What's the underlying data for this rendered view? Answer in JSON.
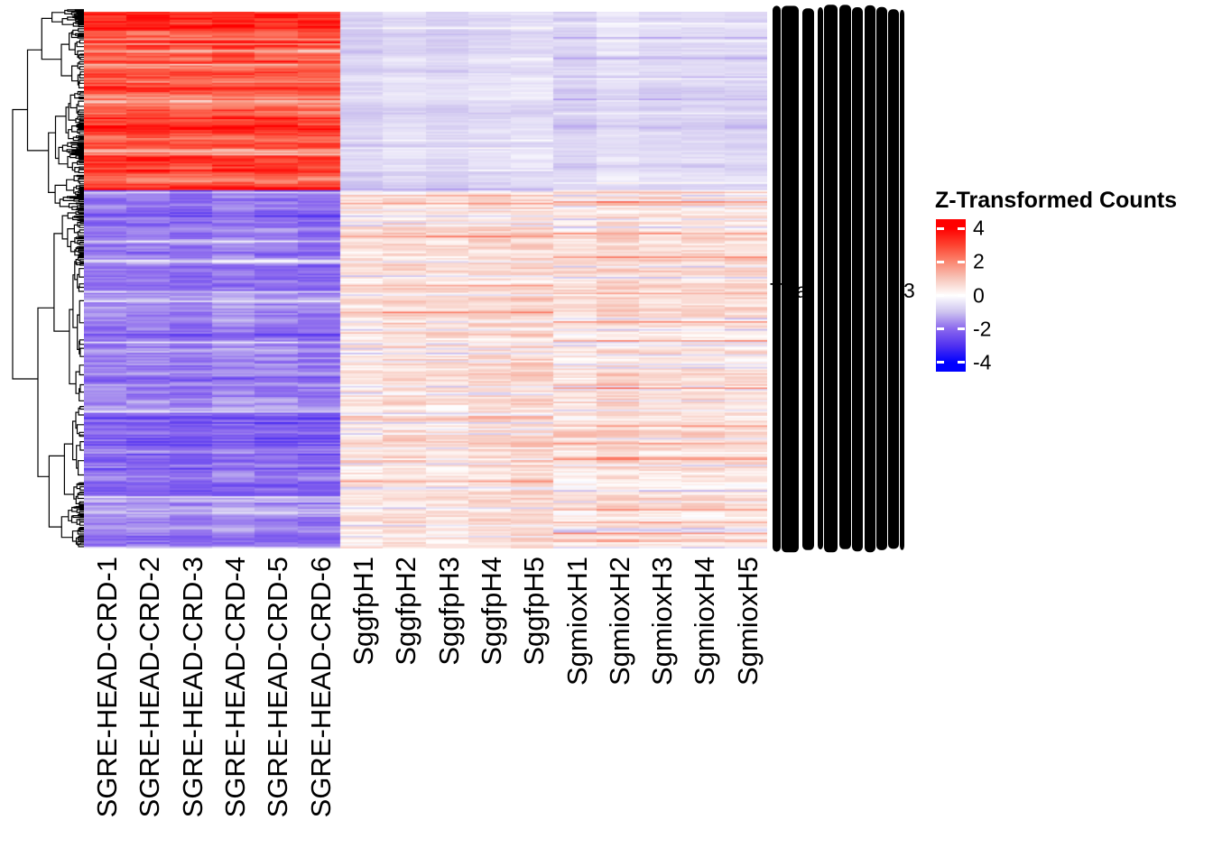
{
  "figure": {
    "description": "Hierarchically clustered gene expression heatmap",
    "background_color": "#ffffff"
  },
  "legend": {
    "title": "Z-Transformed Counts",
    "ticks": [
      {
        "value": 4,
        "label": "4"
      },
      {
        "value": 2,
        "label": "2"
      },
      {
        "value": 0,
        "label": "0"
      },
      {
        "value": -2,
        "label": "-2"
      },
      {
        "value": -4,
        "label": "-4"
      }
    ]
  },
  "row_labels_overplotted": {
    "fragments": [
      "T",
      "a",
      "3"
    ]
  },
  "dendrogram": {
    "side": "left",
    "axis": "rows"
  },
  "chart_data": {
    "type": "heatmap",
    "title": "",
    "legend_title": "Z-Transformed Counts",
    "columns": [
      "SGRE-HEAD-CRD-1",
      "SGRE-HEAD-CRD-2",
      "SGRE-HEAD-CRD-3",
      "SGRE-HEAD-CRD-4",
      "SGRE-HEAD-CRD-5",
      "SGRE-HEAD-CRD-6",
      "SggfpH1",
      "SggfpH2",
      "SggfpH3",
      "SggfpH4",
      "SggfpH5",
      "SgmioxH1",
      "SgmioxH2",
      "SgmioxH3",
      "SgmioxH4",
      "SgmioxH5"
    ],
    "column_groups": [
      {
        "label": "SGRE-HEAD-CRD",
        "start": 0,
        "end": 5
      },
      {
        "label": "SggfpH",
        "start": 6,
        "end": 10
      },
      {
        "label": "SgmioxH",
        "start": 11,
        "end": 15
      }
    ],
    "n_rows": 340,
    "rows": "hierarchically clustered genes; row labels overplotted and illegible",
    "zlim": [
      -4,
      4
    ],
    "legend_ticks": [
      4,
      2,
      0,
      -2,
      -4
    ],
    "colorscale": {
      "anchors_z": [
        -4,
        -3,
        -2,
        -1,
        0,
        1,
        2,
        3,
        4
      ],
      "anchors_hex": [
        "#0000ff",
        "#5031f0",
        "#8a67ee",
        "#cdc3ef",
        "#ffffff",
        "#f7c6bb",
        "#fb8771",
        "#fd4330",
        "#ff0000"
      ]
    },
    "row_clusters": [
      {
        "name": "up-in-SGRE-HEAD-CRD",
        "fraction": 0.332,
        "group_z": [
          {
            "zmin": 1.8,
            "zmax": 3.9,
            "jitter": 0.55,
            "p_lo": 0.05,
            "lo": [
              1.2,
              1.7
            ],
            "p_hi": 0.08,
            "hi_add": 0.6
          },
          {
            "zmin": -0.95,
            "zmax": -0.4,
            "jitter": 0.18,
            "p_lo": 0.02,
            "lo": [
              -1.4,
              -1.0
            ],
            "p_hi": 0.02,
            "hi_add": 0.55
          },
          {
            "zmin": -0.95,
            "zmax": -0.4,
            "jitter": 0.18,
            "p_lo": 0.02,
            "lo": [
              -1.4,
              -1.0
            ],
            "p_hi": 0.02,
            "hi_add": 0.55
          }
        ]
      },
      {
        "name": "down-in-SGRE-HEAD-CRD",
        "fraction": 0.668,
        "group_z": [
          {
            "zmin": -2.45,
            "zmax": -1.15,
            "jitter": 0.38,
            "p_lo": 0.06,
            "lo": [
              -0.9,
              -0.45
            ],
            "p_hi": 0.05,
            "hi_add": -0.55
          },
          {
            "zmin": 0.15,
            "zmax": 1.05,
            "jitter": 0.42,
            "p_lo": 0.13,
            "lo": [
              -0.9,
              -0.25
            ],
            "p_hi": 0.06,
            "hi_add": 1.15
          },
          {
            "zmin": 0.15,
            "zmax": 1.05,
            "jitter": 0.42,
            "p_lo": 0.13,
            "lo": [
              -0.9,
              -0.25
            ],
            "p_hi": 0.07,
            "hi_add": 1.15
          }
        ]
      }
    ]
  }
}
